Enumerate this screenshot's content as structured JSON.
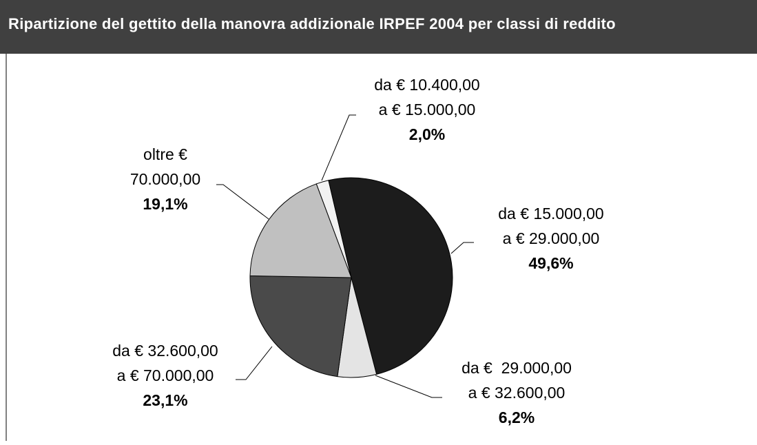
{
  "chart_data": {
    "type": "pie",
    "title": "Ripartizione del gettito della manovra addizionale IRPEF 2004 per classi di reddito",
    "categories": [
      [
        "da € 10.400,00",
        "a € 15.000,00"
      ],
      [
        "da € 15.000,00",
        "a € 29.000,00"
      ],
      [
        "da €  29.000,00",
        "a € 32.600,00"
      ],
      [
        "da € 32.600,00",
        "a € 70.000,00"
      ],
      [
        "oltre €",
        "70.000,00"
      ]
    ],
    "values": [
      2.0,
      49.6,
      6.2,
      23.1,
      19.1
    ],
    "value_labels": [
      "2,0%",
      "49,6%",
      "6,2%",
      "23,1%",
      "19,1%"
    ],
    "colors": [
      "#f2f2f2",
      "#1c1c1c",
      "#e4e4e4",
      "#4a4a4a",
      "#c0c0c0"
    ]
  }
}
